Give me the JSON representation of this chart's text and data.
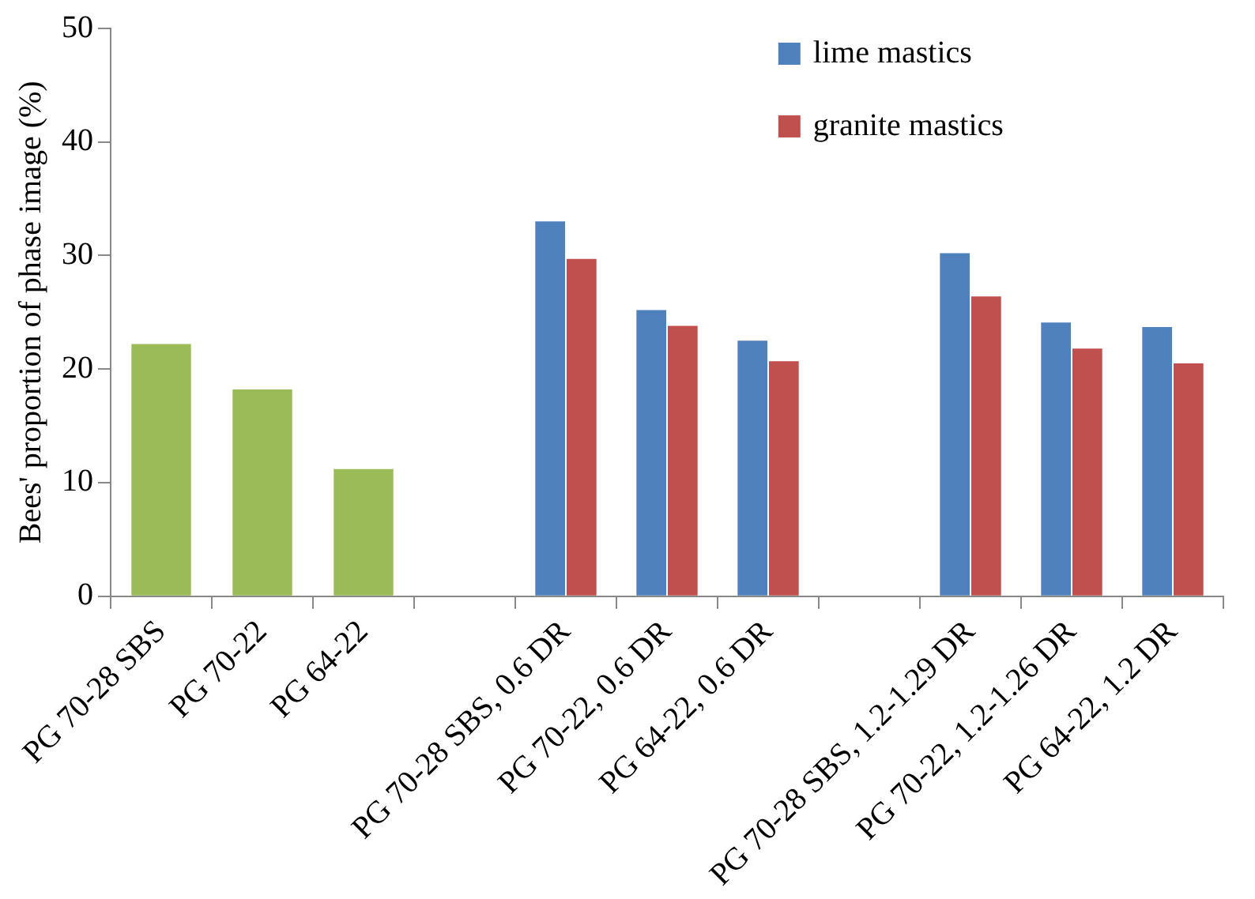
{
  "chart_data": {
    "type": "bar",
    "ylabel": "Bees' proportion of phase image (%)",
    "categories": [
      "PG 70-28 SBS",
      "PG 70-22",
      "PG 64-22",
      null,
      "PG 70-28 SBS, 0.6 DR",
      "PG 70-22, 0.6 DR",
      "PG 64-22, 0.6 DR",
      null,
      "PG 70-28 SBS, 1.2-1.29 DR",
      "PG 70-22, 1.2-1.26 DR",
      "PG 64-22, 1.2 DR"
    ],
    "series": [
      {
        "color": "#9bbb59",
        "values": [
          22.2,
          18.2,
          11.2,
          null,
          null,
          null,
          null,
          null,
          null,
          null,
          null
        ]
      },
      {
        "name": "lime mastics",
        "color": "#4f81bd",
        "values": [
          null,
          null,
          null,
          null,
          33.0,
          25.2,
          22.5,
          null,
          30.2,
          24.1,
          23.7
        ]
      },
      {
        "name": "granite mastics",
        "color": "#c0504d",
        "values": [
          null,
          null,
          null,
          null,
          29.7,
          23.8,
          20.7,
          null,
          26.4,
          21.8,
          20.5
        ]
      }
    ],
    "ylim": [
      0,
      50
    ],
    "yticks": [
      0,
      10,
      20,
      30,
      40,
      50
    ],
    "grid": false,
    "legend": "top right"
  }
}
